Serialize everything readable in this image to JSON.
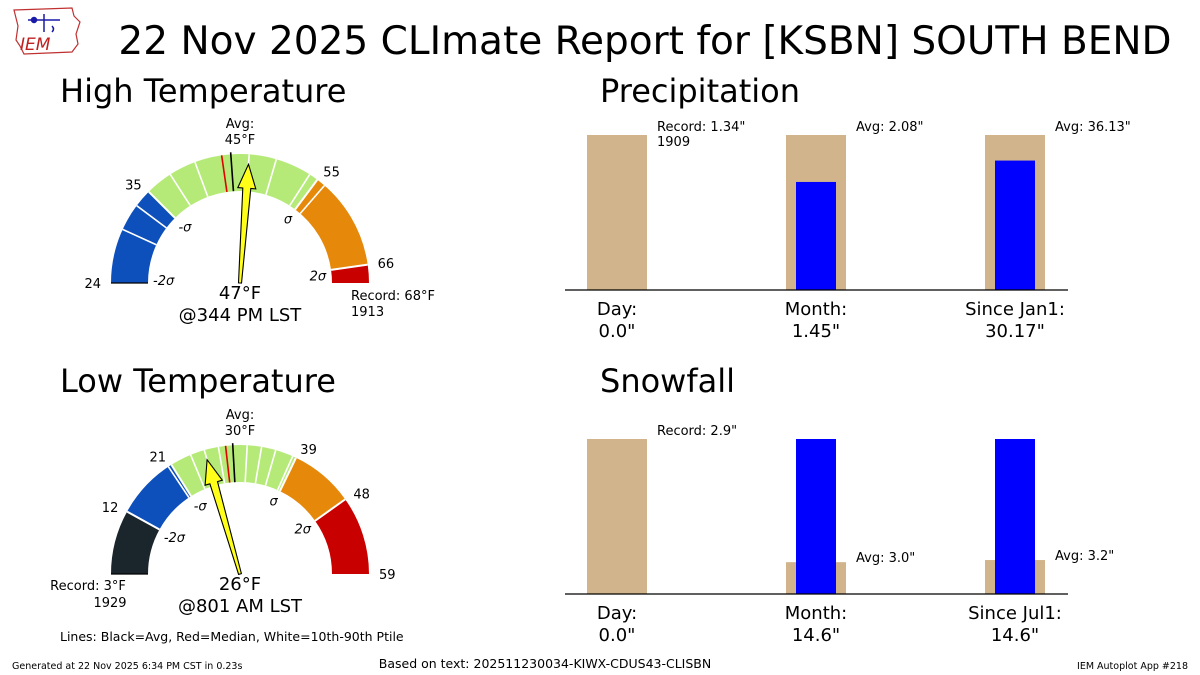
{
  "title": "22 Nov 2025 CLImate Report for [KSBN] SOUTH BEND",
  "logo": {
    "text": "IEM",
    "name": "iem-logo"
  },
  "footer": {
    "left": "Generated at 22 Nov 2025 6:34 PM CST in 0.23s",
    "center": "Based on text: 202511230034-KIWX-CDUS43-CLISBN",
    "right": "IEM Autoplot App #218"
  },
  "legend_note": "Lines: Black=Avg, Red=Median, White=10th-90th Ptile",
  "colors": {
    "below_2sigma": "#0d4fbb",
    "within_sigma": "#b6ea78",
    "above_sigma": "#e6890a",
    "above_2sigma": "#c80000",
    "record_low_band": "#1b262c",
    "needle": "#ffff1a",
    "avg_bar": "#d2b48c",
    "obs_bar": "#0000ff"
  },
  "chart_data": [
    {
      "type": "gauge",
      "title": "High Temperature",
      "range": [
        24,
        68
      ],
      "bands": [
        {
          "from": 24,
          "to": 35,
          "color": "#0d4fbb"
        },
        {
          "from": 35,
          "to": 55,
          "color": "#b6ea78"
        },
        {
          "from": 55,
          "to": 66,
          "color": "#e6890a"
        },
        {
          "from": 66,
          "to": 68,
          "color": "#c80000"
        }
      ],
      "tick_labels": [
        {
          "value": 24,
          "label": "24"
        },
        {
          "value": 35,
          "label": "35"
        },
        {
          "value": 55,
          "label": "55"
        },
        {
          "value": 66,
          "label": "66"
        }
      ],
      "sigma_labels": [
        {
          "value": 24,
          "label": "-2σ"
        },
        {
          "value": 35,
          "label": "-σ"
        },
        {
          "value": 55,
          "label": "σ"
        },
        {
          "value": 66,
          "label": "2σ"
        }
      ],
      "avg_value": 45,
      "median_value": 44,
      "percentile_lines": [
        30,
        33,
        38,
        41,
        47,
        50,
        54,
        56
      ],
      "observed": 47,
      "avg_label": [
        "Avg:",
        "45°F"
      ],
      "observed_label": [
        "47°F",
        "@344 PM LST"
      ],
      "record_label": [
        "Record: 68°F",
        "1913"
      ],
      "record_side": "right"
    },
    {
      "type": "gauge",
      "title": "Low Temperature",
      "range": [
        3,
        59
      ],
      "bands": [
        {
          "from": 3,
          "to": 12,
          "color": "#1b262c"
        },
        {
          "from": 12,
          "to": 21,
          "color": "#0d4fbb"
        },
        {
          "from": 21,
          "to": 39,
          "color": "#b6ea78"
        },
        {
          "from": 39,
          "to": 48,
          "color": "#e6890a"
        },
        {
          "from": 48,
          "to": 59,
          "color": "#c80000"
        }
      ],
      "tick_labels": [
        {
          "value": 12,
          "label": "12"
        },
        {
          "value": 21,
          "label": "21"
        },
        {
          "value": 39,
          "label": "39"
        },
        {
          "value": 48,
          "label": "48"
        },
        {
          "value": 59,
          "label": "59"
        }
      ],
      "sigma_labels": [
        {
          "value": 12,
          "label": "-2σ"
        },
        {
          "value": 21,
          "label": "-σ"
        },
        {
          "value": 39,
          "label": "σ"
        },
        {
          "value": 48,
          "label": "2σ"
        }
      ],
      "avg_value": 30,
      "median_value": 29,
      "percentile_lines": [
        20.5,
        24,
        26,
        28,
        32,
        34,
        36,
        38.5
      ],
      "observed": 26,
      "avg_label": [
        "Avg:",
        "30°F"
      ],
      "observed_label": [
        "26°F",
        "@801 AM LST"
      ],
      "record_label": [
        "Record: 3°F",
        "1929"
      ],
      "record_side": "left"
    },
    {
      "type": "bar",
      "title": "Precipitation",
      "categories": [
        "Day:",
        "Month:",
        "Since Jan1:"
      ],
      "observed_labels": [
        "0.0\"",
        "1.45\"",
        "30.17\""
      ],
      "observed": [
        0.0,
        1.45,
        30.17
      ],
      "average": [
        1.34,
        2.08,
        36.13
      ],
      "bar_annotations": [
        [
          "Record: 1.34\"",
          "1909"
        ],
        [
          "Avg: 2.08\""
        ],
        [
          "Avg: 36.13\""
        ]
      ]
    },
    {
      "type": "bar",
      "title": "Snowfall",
      "categories": [
        "Day:",
        "Month:",
        "Since Jul1:"
      ],
      "observed_labels": [
        "0.0\"",
        "14.6\"",
        "14.6\""
      ],
      "observed": [
        0.0,
        14.6,
        14.6
      ],
      "average": [
        2.9,
        3.0,
        3.2
      ],
      "bar_annotations": [
        [
          "Record: 2.9\""
        ],
        [
          "Avg: 3.0\""
        ],
        [
          "Avg: 3.2\""
        ]
      ]
    }
  ]
}
